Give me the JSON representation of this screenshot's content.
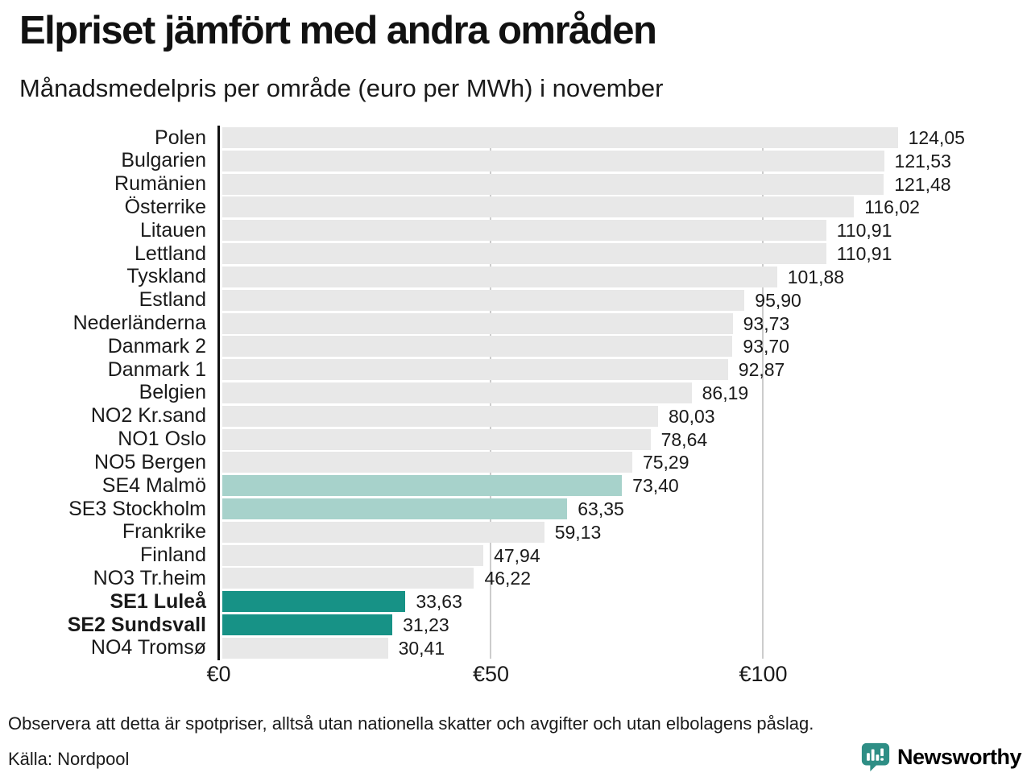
{
  "header": {
    "title": "Elpriset jämfört med andra områden",
    "subtitle": "Månadsmedelpris per område (euro per MWh) i november"
  },
  "chart_data": {
    "type": "bar",
    "orientation": "horizontal",
    "title": "Elpriset jämfört med andra områden",
    "subtitle": "Månadsmedelpris per område (euro per MWh) i november",
    "unit": "euro per MWh",
    "categories": [
      "Polen",
      "Bulgarien",
      "Rumänien",
      "Österrike",
      "Litauen",
      "Lettland",
      "Tyskland",
      "Estland",
      "Nederländerna",
      "Danmark 2",
      "Danmark 1",
      "Belgien",
      "NO2 Kr.sand",
      "NO1 Oslo",
      "NO5 Bergen",
      "SE4 Malmö",
      "SE3 Stockholm",
      "Frankrike",
      "Finland",
      "NO3 Tr.heim",
      "SE1 Luleå",
      "SE2 Sundsvall",
      "NO4 Tromsø"
    ],
    "values": [
      124.05,
      121.53,
      121.48,
      116.02,
      110.91,
      110.91,
      101.88,
      95.9,
      93.73,
      93.7,
      92.87,
      86.19,
      80.03,
      78.64,
      75.29,
      73.4,
      63.35,
      59.13,
      47.94,
      46.22,
      33.63,
      31.23,
      30.41
    ],
    "value_labels": [
      "124,05",
      "121,53",
      "121,48",
      "116,02",
      "110,91",
      "110,91",
      "101,88",
      "95,90",
      "93,73",
      "93,70",
      "92,87",
      "86,19",
      "80,03",
      "78,64",
      "75,29",
      "73,40",
      "63,35",
      "59,13",
      "47,94",
      "46,22",
      "33,63",
      "31,23",
      "30,41"
    ],
    "styles": [
      "default",
      "default",
      "default",
      "default",
      "default",
      "default",
      "default",
      "default",
      "default",
      "default",
      "default",
      "default",
      "default",
      "default",
      "default",
      "light",
      "light",
      "default",
      "default",
      "default",
      "dark",
      "dark",
      "default"
    ],
    "emphasis": [
      false,
      false,
      false,
      false,
      false,
      false,
      false,
      false,
      false,
      false,
      false,
      false,
      false,
      false,
      false,
      false,
      false,
      false,
      false,
      false,
      true,
      true,
      false
    ],
    "xticks": [
      "€0",
      "€50",
      "€100"
    ],
    "xtick_values": [
      0,
      50,
      100
    ],
    "xlim": [
      0,
      148
    ],
    "grid": true,
    "legend": "none"
  },
  "colors": {
    "bar_default": "#e8e8e8",
    "bar_light": "#a7d2cb",
    "bar_dark": "#179286",
    "axis": "#111111",
    "gridline": "#cccccc",
    "brand_teal": "#2e8e85"
  },
  "footer": {
    "note": "Observera att detta är spotpriser, alltså utan nationella skatter och avgifter och utan elbolagens påslag.",
    "source": "Källa: Nordpool",
    "brand": "Newsworthy"
  }
}
